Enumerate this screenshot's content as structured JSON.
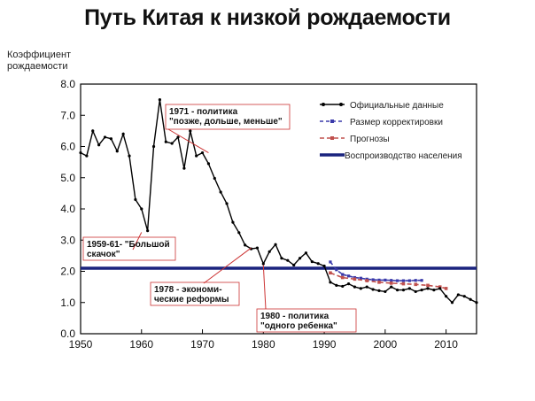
{
  "title": "Путь Китая к низкой рождаемости",
  "y_axis_label_lines": [
    "Коэффициент",
    "рождаемости"
  ],
  "colors": {
    "official": "#000000",
    "adjusted": "#3a3aaa",
    "forecasts": "#c0504d",
    "replacement": "#1a237e",
    "annotation_line": "#cc3333"
  },
  "annotations": [
    {
      "lines": [
        "1971 - политика",
        "\"позже, дольше, меньше\""
      ],
      "year": 1971,
      "value": 5.8
    },
    {
      "lines": [
        "1959-61- \"Большой",
        "скачок\""
      ],
      "year": 1960,
      "value": 3.25
    },
    {
      "lines": [
        "1978 - экономи-",
        "ческие реформы"
      ],
      "year": 1978,
      "value": 2.75
    },
    {
      "lines": [
        "1980 - политика",
        "\"одного ребенка\""
      ],
      "year": 1980,
      "value": 2.2
    }
  ],
  "chart_data": {
    "type": "line",
    "title": "Путь Китая к низкой рождаемости",
    "xlabel": "",
    "ylabel": "Коэффициент рождаемости",
    "xlim": [
      1950,
      2015
    ],
    "ylim": [
      0,
      8
    ],
    "xticks": [
      "1950",
      "1960",
      "1970",
      "1980",
      "1990",
      "2000",
      "2010"
    ],
    "yticks": [
      "0.0",
      "1.0",
      "2.0",
      "3.0",
      "4.0",
      "5.0",
      "6.0",
      "7.0",
      "8.0"
    ],
    "legend_position": "top-right",
    "series": [
      {
        "name": "Официальные данные",
        "style": "solid-marker",
        "x": [
          1950,
          1951,
          1952,
          1953,
          1954,
          1955,
          1956,
          1957,
          1958,
          1959,
          1960,
          1961,
          1962,
          1963,
          1964,
          1965,
          1966,
          1967,
          1968,
          1969,
          1970,
          1971,
          1972,
          1973,
          1974,
          1975,
          1976,
          1977,
          1978,
          1979,
          1980,
          1981,
          1982,
          1983,
          1984,
          1985,
          1986,
          1987,
          1988,
          1989,
          1990,
          1991,
          1992,
          1993,
          1994,
          1995,
          1996,
          1997,
          1998,
          1999,
          2000,
          2001,
          2002,
          2003,
          2004,
          2005,
          2006,
          2007,
          2008,
          2009,
          2010,
          2011,
          2012,
          2013,
          2014,
          2015
        ],
        "y": [
          5.8,
          5.7,
          6.5,
          6.05,
          6.3,
          6.25,
          5.85,
          6.4,
          5.7,
          4.3,
          4.0,
          3.3,
          6.0,
          7.5,
          6.15,
          6.1,
          6.3,
          5.3,
          6.5,
          5.7,
          5.8,
          5.45,
          4.98,
          4.54,
          4.17,
          3.57,
          3.24,
          2.84,
          2.72,
          2.75,
          2.24,
          2.63,
          2.86,
          2.42,
          2.35,
          2.2,
          2.42,
          2.59,
          2.31,
          2.25,
          2.17,
          1.65,
          1.55,
          1.52,
          1.6,
          1.5,
          1.45,
          1.5,
          1.42,
          1.38,
          1.35,
          1.5,
          1.4,
          1.4,
          1.45,
          1.35,
          1.4,
          1.45,
          1.4,
          1.45,
          1.2,
          1.0,
          1.25,
          1.2,
          1.1,
          1.0
        ]
      },
      {
        "name": "Размер корректировки",
        "style": "dashed-marker",
        "x": [
          1991,
          1992,
          1993,
          1994,
          1995,
          1996,
          1997,
          1998,
          1999,
          2000,
          2001,
          2002,
          2003,
          2004,
          2005,
          2006
        ],
        "y": [
          2.3,
          2.05,
          1.9,
          1.85,
          1.8,
          1.78,
          1.75,
          1.73,
          1.72,
          1.72,
          1.71,
          1.7,
          1.7,
          1.7,
          1.71,
          1.71
        ]
      },
      {
        "name": "Прогнозы",
        "style": "dashed-marker",
        "x": [
          1991,
          1993,
          1995,
          1997,
          1999,
          2001,
          2003,
          2005,
          2007,
          2009,
          2010
        ],
        "y": [
          1.95,
          1.8,
          1.75,
          1.7,
          1.65,
          1.62,
          1.6,
          1.58,
          1.55,
          1.5,
          1.45
        ]
      },
      {
        "name": "Воспроизводство населения",
        "style": "thick",
        "x": [
          1950,
          2015
        ],
        "y": [
          2.1,
          2.1
        ]
      }
    ]
  }
}
